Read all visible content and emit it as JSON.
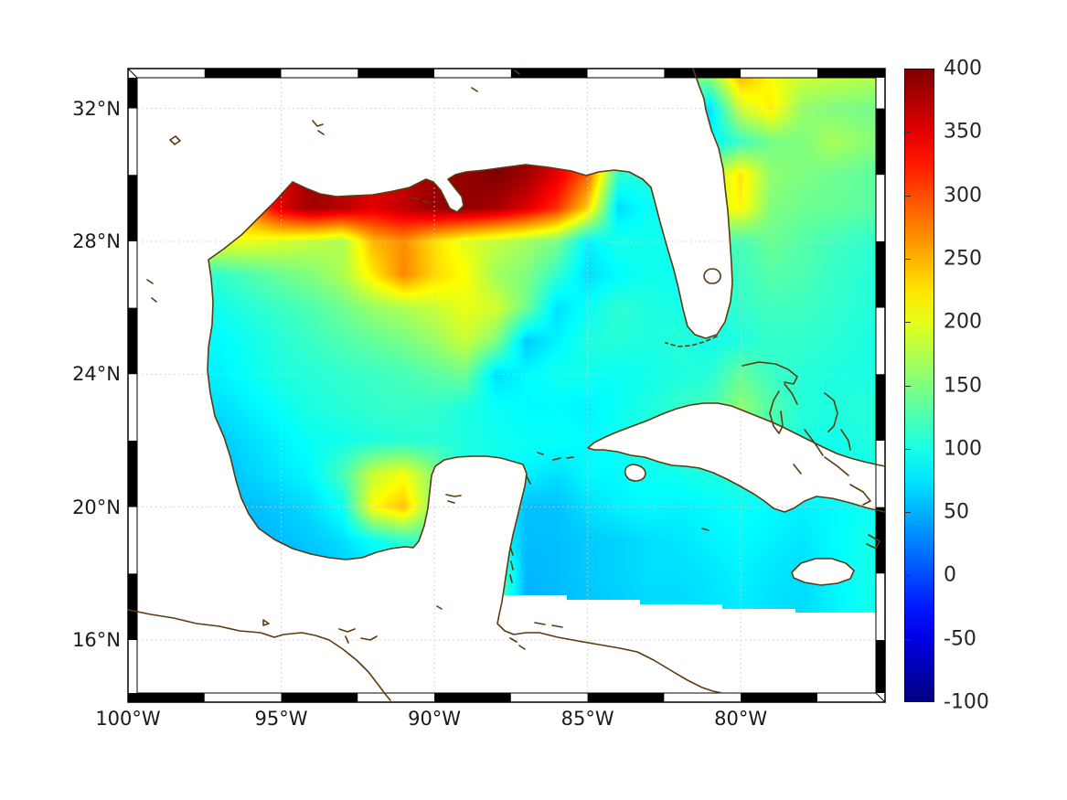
{
  "figure": {
    "background": "#ffffff",
    "kind": "geographic heatmap of Gulf of Mexico region"
  },
  "map": {
    "coastline_color": "#5c3a10",
    "grid_color": "#c9c9c9",
    "frame_color": "#000000",
    "land_color": "#ffffff",
    "lon_ticks": [
      {
        "label": "100°W",
        "lon": -100
      },
      {
        "label": "95°W",
        "lon": -95
      },
      {
        "label": "90°W",
        "lon": -90
      },
      {
        "label": "85°W",
        "lon": -85
      },
      {
        "label": "80°W",
        "lon": -80
      }
    ],
    "lat_ticks": [
      {
        "label": "32°N",
        "lat": 32
      },
      {
        "label": "28°N",
        "lat": 28
      },
      {
        "label": "24°N",
        "lat": 24
      },
      {
        "label": "20°N",
        "lat": 20
      },
      {
        "label": "16°N",
        "lat": 16
      }
    ]
  },
  "colorbar": {
    "colormap": "jet",
    "min": -100,
    "max": 400,
    "tick_step": 50,
    "ticks": [
      "400",
      "350",
      "300",
      "250",
      "200",
      "150",
      "100",
      "50",
      "0",
      "-50",
      "-100"
    ]
  },
  "chart_data": {
    "type": "heatmap",
    "title": "",
    "xlabel": "",
    "ylabel": "",
    "colormap": "jet",
    "clim": [
      -100,
      400
    ],
    "lon_range": [
      -100,
      -75.3
    ],
    "lat_range": [
      14.1,
      33.2
    ],
    "grid": true,
    "legend_position": "right-colorbar",
    "lons": [
      -100,
      -99,
      -98,
      -97,
      -96,
      -95,
      -94,
      -93,
      -92,
      -91,
      -90,
      -89,
      -88,
      -87,
      -86,
      -85,
      -84,
      -83,
      -82,
      -81,
      -80,
      -79,
      -78,
      -77,
      -76,
      -75
    ],
    "lats": [
      33.5,
      33,
      32,
      31,
      30,
      29,
      28,
      27,
      26,
      25,
      24,
      23,
      22,
      21,
      20,
      19,
      18,
      17.3,
      16.5
    ],
    "values": [
      [
        null,
        null,
        null,
        null,
        null,
        null,
        null,
        null,
        null,
        null,
        null,
        null,
        null,
        null,
        null,
        null,
        null,
        null,
        150,
        170,
        265,
        215,
        195,
        185,
        180,
        175
      ],
      [
        null,
        null,
        null,
        null,
        null,
        null,
        null,
        null,
        null,
        null,
        null,
        null,
        null,
        null,
        null,
        null,
        null,
        null,
        140,
        160,
        250,
        210,
        190,
        185,
        180,
        175
      ],
      [
        null,
        null,
        null,
        null,
        null,
        null,
        null,
        null,
        null,
        null,
        null,
        null,
        null,
        null,
        null,
        null,
        null,
        null,
        null,
        70,
        190,
        220,
        160,
        150,
        145,
        142
      ],
      [
        null,
        null,
        null,
        null,
        null,
        null,
        null,
        null,
        null,
        null,
        null,
        null,
        null,
        null,
        null,
        null,
        null,
        null,
        null,
        85,
        115,
        145,
        150,
        170,
        158,
        148
      ],
      [
        null,
        null,
        null,
        null,
        null,
        null,
        null,
        null,
        null,
        null,
        null,
        390,
        400,
        385,
        350,
        290,
        110,
        null,
        null,
        170,
        225,
        158,
        150,
        142,
        136,
        132
      ],
      [
        null,
        null,
        null,
        null,
        null,
        355,
        385,
        372,
        352,
        368,
        388,
        392,
        380,
        355,
        315,
        235,
        70,
        92,
        null,
        null,
        215,
        150,
        141,
        138,
        134,
        130
      ],
      [
        null,
        null,
        null,
        208,
        203,
        194,
        184,
        172,
        248,
        268,
        228,
        198,
        184,
        168,
        148,
        82,
        100,
        96,
        null,
        null,
        122,
        140,
        130,
        120,
        112,
        110
      ],
      [
        null,
        null,
        null,
        112,
        126,
        140,
        152,
        172,
        222,
        272,
        232,
        212,
        166,
        150,
        112,
        72,
        86,
        96,
        92,
        null,
        116,
        130,
        125,
        115,
        108,
        105
      ],
      [
        null,
        null,
        null,
        96,
        106,
        116,
        126,
        142,
        162,
        172,
        186,
        202,
        192,
        142,
        72,
        92,
        110,
        102,
        null,
        null,
        112,
        120,
        118,
        112,
        106,
        102
      ],
      [
        null,
        null,
        null,
        86,
        96,
        106,
        116,
        126,
        136,
        146,
        162,
        186,
        152,
        62,
        82,
        102,
        106,
        102,
        106,
        96,
        102,
        112,
        112,
        108,
        102,
        98
      ],
      [
        null,
        null,
        null,
        82,
        92,
        102,
        106,
        112,
        116,
        122,
        132,
        142,
        72,
        86,
        96,
        96,
        92,
        96,
        102,
        106,
        138,
        116,
        106,
        102,
        100,
        104
      ],
      [
        null,
        null,
        null,
        72,
        82,
        92,
        102,
        106,
        112,
        116,
        112,
        102,
        92,
        86,
        86,
        82,
        92,
        102,
        112,
        122,
        158,
        128,
        106,
        102,
        106,
        110
      ],
      [
        null,
        null,
        null,
        62,
        72,
        82,
        92,
        96,
        102,
        106,
        106,
        102,
        96,
        92,
        92,
        86,
        96,
        106,
        112,
        112,
        128,
        null,
        null,
        96,
        102,
        106
      ],
      [
        null,
        null,
        null,
        56,
        66,
        76,
        86,
        122,
        186,
        206,
        null,
        null,
        null,
        null,
        72,
        86,
        86,
        92,
        96,
        102,
        106,
        106,
        100,
        96,
        null,
        null
      ],
      [
        null,
        null,
        null,
        null,
        56,
        62,
        72,
        92,
        212,
        242,
        152,
        null,
        null,
        null,
        58,
        72,
        82,
        86,
        82,
        86,
        92,
        86,
        82,
        86,
        92,
        96
      ],
      [
        null,
        null,
        null,
        null,
        46,
        56,
        62,
        72,
        92,
        112,
        122,
        null,
        null,
        56,
        56,
        62,
        66,
        72,
        76,
        82,
        86,
        82,
        76,
        86,
        96,
        100
      ],
      [
        null,
        null,
        null,
        null,
        null,
        46,
        52,
        62,
        72,
        92,
        null,
        null,
        142,
        52,
        56,
        62,
        66,
        72,
        72,
        76,
        82,
        76,
        72,
        null,
        96,
        100
      ],
      [
        null,
        null,
        null,
        null,
        null,
        44,
        50,
        60,
        70,
        90,
        null,
        null,
        140,
        50,
        54,
        60,
        64,
        70,
        70,
        74,
        80,
        74,
        70,
        null,
        94,
        98
      ],
      [
        null,
        null,
        null,
        null,
        null,
        null,
        null,
        null,
        null,
        null,
        null,
        null,
        null,
        null,
        null,
        null,
        null,
        null,
        null,
        null,
        null,
        null,
        null,
        null,
        null,
        null
      ]
    ]
  }
}
